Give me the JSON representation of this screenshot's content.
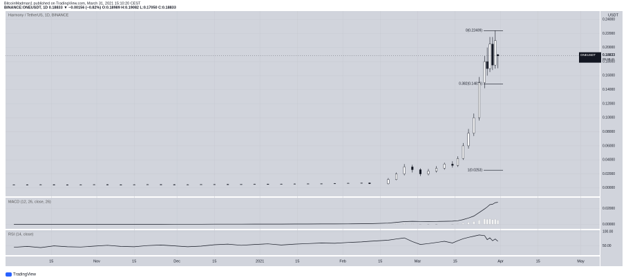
{
  "header": {
    "line1": "BitcoinMadman1 published on TradingView.com, March 31, 2021 15:10:20 CEST",
    "line2": "BINANCE:ONEUSDT, 1D 0.18833 ▼ −0.00156 (−0.82%) O:0.18989 H:0.19082 L:0.17050 C:0.18833"
  },
  "footer": "TradingView",
  "chart_data": {
    "type": "candlestick",
    "title": "Harmony / TetherUS, 1D, BINANCE",
    "x": [
      0,
      5,
      10,
      15,
      20,
      25,
      30,
      35,
      40,
      45,
      50,
      55,
      60,
      65,
      70,
      75,
      80,
      85,
      90,
      95,
      100,
      105,
      110,
      115,
      120,
      125,
      130,
      133,
      140,
      143,
      146,
      149,
      152,
      155,
      158,
      161,
      164,
      166,
      168,
      170,
      172,
      174,
      176,
      177,
      178,
      179,
      180,
      181
    ],
    "open": [
      0.0045,
      0.0046,
      0.0044,
      0.0047,
      0.0045,
      0.0043,
      0.0046,
      0.0048,
      0.0046,
      0.0045,
      0.0047,
      0.0049,
      0.0048,
      0.0046,
      0.0047,
      0.005,
      0.0052,
      0.0051,
      0.0053,
      0.0055,
      0.0054,
      0.0056,
      0.0058,
      0.006,
      0.0062,
      0.0065,
      0.0068,
      0.0072,
      0.006,
      0.012,
      0.02,
      0.03,
      0.026,
      0.02,
      0.024,
      0.028,
      0.034,
      0.032,
      0.042,
      0.06,
      0.078,
      0.1,
      0.15,
      0.18,
      0.17,
      0.205,
      0.175,
      0.18989
    ],
    "high": [
      0.005,
      0.005,
      0.0051,
      0.0051,
      0.0049,
      0.005,
      0.0052,
      0.0052,
      0.005,
      0.0051,
      0.0053,
      0.0053,
      0.0052,
      0.0051,
      0.0054,
      0.0056,
      0.0056,
      0.0057,
      0.0059,
      0.0059,
      0.006,
      0.0062,
      0.0064,
      0.0066,
      0.0069,
      0.0072,
      0.0076,
      0.0076,
      0.014,
      0.022,
      0.034,
      0.033,
      0.028,
      0.027,
      0.031,
      0.036,
      0.038,
      0.045,
      0.064,
      0.084,
      0.106,
      0.158,
      0.188,
      0.2,
      0.215,
      0.215,
      0.224,
      0.19082
    ],
    "low": [
      0.0041,
      0.004,
      0.004,
      0.0041,
      0.0039,
      0.0039,
      0.0042,
      0.0042,
      0.0041,
      0.0041,
      0.0043,
      0.0044,
      0.0042,
      0.0042,
      0.0043,
      0.0047,
      0.0047,
      0.0047,
      0.0049,
      0.005,
      0.005,
      0.0052,
      0.0054,
      0.0056,
      0.0058,
      0.0061,
      0.0064,
      0.0056,
      0.005,
      0.011,
      0.018,
      0.022,
      0.017,
      0.018,
      0.022,
      0.026,
      0.029,
      0.03,
      0.04,
      0.056,
      0.074,
      0.096,
      0.142,
      0.16,
      0.165,
      0.168,
      0.17,
      0.1705
    ],
    "close": [
      0.0046,
      0.0044,
      0.0047,
      0.0045,
      0.0043,
      0.0046,
      0.0048,
      0.0046,
      0.0045,
      0.0047,
      0.0049,
      0.0048,
      0.0046,
      0.0047,
      0.005,
      0.0052,
      0.0051,
      0.0053,
      0.0055,
      0.0054,
      0.0056,
      0.0058,
      0.006,
      0.0062,
      0.0065,
      0.0068,
      0.0072,
      0.006,
      0.012,
      0.02,
      0.03,
      0.026,
      0.02,
      0.024,
      0.028,
      0.034,
      0.032,
      0.042,
      0.06,
      0.078,
      0.1,
      0.15,
      0.18,
      0.17,
      0.205,
      0.175,
      0.21,
      0.18833
    ],
    "up_color": "#ffffff",
    "down_color": "#131722",
    "xlim": [
      -2.6,
      218.3
    ],
    "xticks": [
      {
        "value": 14,
        "label": "15"
      },
      {
        "value": 31,
        "label": "Nov"
      },
      {
        "value": 45,
        "label": "15"
      },
      {
        "value": 61,
        "label": "Dec"
      },
      {
        "value": 75,
        "label": "15"
      },
      {
        "value": 92,
        "label": "2021"
      },
      {
        "value": 106,
        "label": "15"
      },
      {
        "value": 123,
        "label": "Feb"
      },
      {
        "value": 137,
        "label": "15"
      },
      {
        "value": 151,
        "label": "Mar"
      },
      {
        "value": 165,
        "label": "15"
      },
      {
        "value": 182,
        "label": "Apr"
      },
      {
        "value": 196,
        "label": "15"
      },
      {
        "value": 212,
        "label": "May"
      }
    ],
    "ylim": [
      -0.01,
      0.25
    ],
    "yticks": [
      {
        "value": 0,
        "label": "0.00000"
      },
      {
        "value": 0.02,
        "label": "0.02000"
      },
      {
        "value": 0.04,
        "label": "0.04000"
      },
      {
        "value": 0.06,
        "label": "0.06000"
      },
      {
        "value": 0.08,
        "label": "0.08000"
      },
      {
        "value": 0.1,
        "label": "0.10000"
      },
      {
        "value": 0.12,
        "label": "0.12000"
      },
      {
        "value": 0.14,
        "label": "0.14000"
      },
      {
        "value": 0.16,
        "label": "0.16000"
      },
      {
        "value": 0.18,
        "label": "0.18000"
      },
      {
        "value": 0.2,
        "label": "0.20000"
      },
      {
        "value": 0.22,
        "label": "0.22000"
      },
      {
        "value": 0.24,
        "label": "0.24000"
      }
    ],
    "axis_unit": "USDT",
    "fib_levels": [
      {
        "value": 0.22409,
        "label": "0(0.22409)"
      },
      {
        "value": 0.14816,
        "label": "0.382(0.14816)"
      },
      {
        "value": 0.0253,
        "label": "1(0.0253)"
      }
    ],
    "last_price": {
      "symbol": "ONEUSDT",
      "value": 0.18833,
      "countdown": "05:49:41"
    },
    "macd": {
      "title": "MACD (12, 26, close, 26)",
      "line_color": "#131722",
      "hist_color": "#f5f5f5",
      "hist_neg_color": "#8a8d96",
      "line": [
        0,
        0,
        0,
        0,
        0,
        0,
        0,
        0,
        0,
        0,
        0,
        0,
        0.0001,
        0.0001,
        0.0001,
        0.0002,
        0.0002,
        0.0002,
        0.0003,
        0.0003,
        0.0003,
        0.0004,
        0.0004,
        0.0005,
        0.0005,
        0.0006,
        0.0007,
        0.0008,
        0.0015,
        0.0025,
        0.0035,
        0.0038,
        0.0036,
        0.0035,
        0.0036,
        0.0038,
        0.004,
        0.0045,
        0.006,
        0.008,
        0.0105,
        0.015,
        0.0195,
        0.022,
        0.025,
        0.0255,
        0.0275,
        0.028
      ],
      "histogram": [
        0,
        0,
        0,
        0,
        0,
        0,
        0,
        0,
        0,
        0,
        0,
        0,
        0,
        0,
        0,
        0,
        0,
        0,
        0,
        0,
        0,
        0,
        0,
        0,
        0,
        0,
        0,
        0,
        0.0005,
        0.001,
        0.0012,
        0.0008,
        0.0002,
        -0.0002,
        -0.0003,
        0,
        0.0002,
        0.0006,
        0.0015,
        0.0025,
        0.0035,
        0.0055,
        0.007,
        0.0065,
        0.007,
        0.006,
        0.0065,
        0.0055
      ],
      "ylim": [
        -0.004,
        0.032
      ],
      "yticks": [
        {
          "value": 0,
          "label": "0.00000"
        },
        {
          "value": 0.02,
          "label": "0.02000"
        }
      ]
    },
    "rsi": {
      "title": "RSI (14, close)",
      "color": "#131722",
      "values": [
        45,
        48,
        44,
        50,
        47,
        46,
        49,
        52,
        48,
        47,
        51,
        53,
        50,
        47,
        49,
        54,
        56,
        52,
        55,
        57,
        53,
        56,
        58,
        60,
        59,
        62,
        64,
        66,
        70,
        74,
        78,
        65,
        55,
        58,
        62,
        66,
        60,
        68,
        75,
        80,
        84,
        88,
        86,
        72,
        78,
        68,
        74,
        66
      ],
      "ylim": [
        20,
        100
      ],
      "yticks": [
        {
          "value": 50,
          "label": "50.00"
        },
        {
          "value": 100,
          "label": "100.00"
        }
      ]
    }
  }
}
